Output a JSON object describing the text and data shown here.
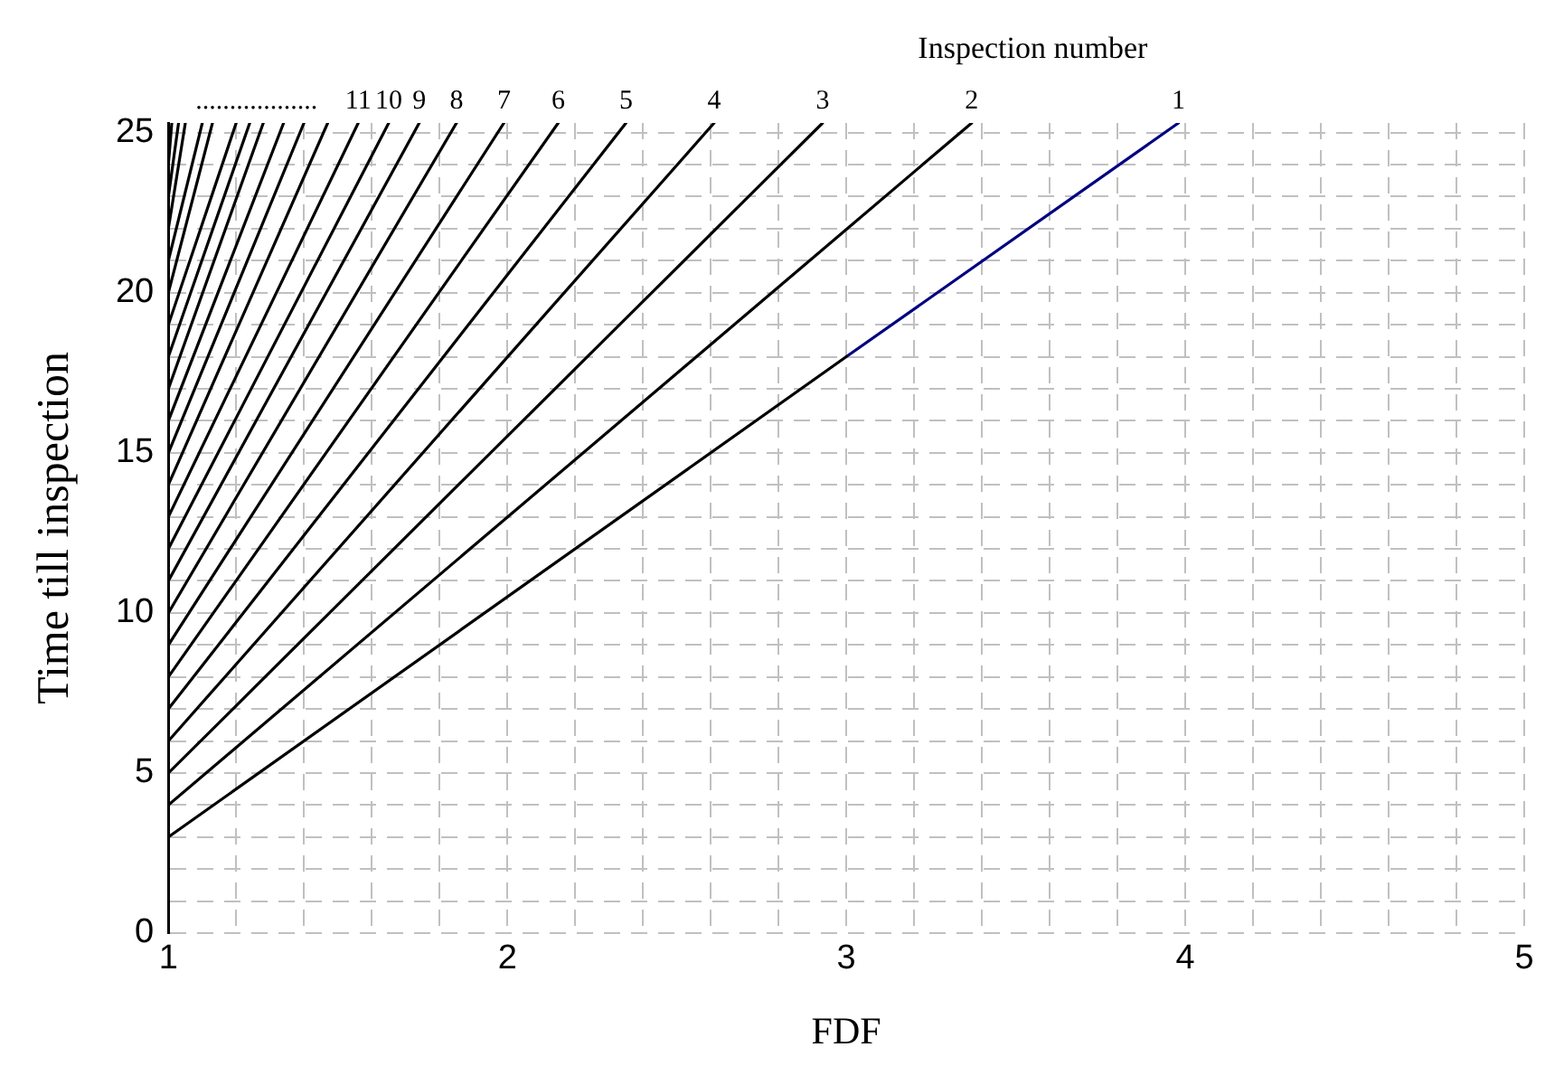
{
  "chart_data": {
    "type": "line",
    "xlabel": "FDF",
    "ylabel": "Time till inspection",
    "xlim": [
      1,
      5
    ],
    "ylim": [
      0,
      25.3
    ],
    "xticks": [
      1,
      {
        "value": 1.2,
        "label": null
      },
      {
        "value": 1.4,
        "label": null
      },
      {
        "value": 1.6,
        "label": null
      },
      {
        "value": 1.8,
        "label": null
      },
      2,
      {
        "value": 2.2,
        "label": null
      },
      {
        "value": 2.4,
        "label": null
      },
      {
        "value": 2.6,
        "label": null
      },
      {
        "value": 2.8,
        "label": null
      },
      3,
      {
        "value": 3.2,
        "label": null
      },
      {
        "value": 3.4,
        "label": null
      },
      {
        "value": 3.6,
        "label": null
      },
      {
        "value": 3.8,
        "label": null
      },
      4,
      {
        "value": 4.2,
        "label": null
      },
      {
        "value": 4.4,
        "label": null
      },
      {
        "value": 4.6,
        "label": null
      },
      {
        "value": 4.8,
        "label": null
      },
      5
    ],
    "yticks": [
      0,
      {
        "value": 1,
        "label": null
      },
      {
        "value": 2,
        "label": null
      },
      {
        "value": 3,
        "label": null
      },
      {
        "value": 4,
        "label": null
      },
      5,
      {
        "value": 6,
        "label": null
      },
      {
        "value": 7,
        "label": null
      },
      {
        "value": 8,
        "label": null
      },
      {
        "value": 9,
        "label": null
      },
      10,
      {
        "value": 11,
        "label": null
      },
      {
        "value": 12,
        "label": null
      },
      {
        "value": 13,
        "label": null
      },
      {
        "value": 14,
        "label": null
      },
      15,
      {
        "value": 16,
        "label": null
      },
      {
        "value": 17,
        "label": null
      },
      {
        "value": 18,
        "label": null
      },
      {
        "value": 19,
        "label": null
      },
      20,
      {
        "value": 21,
        "label": null
      },
      {
        "value": 22,
        "label": null
      },
      {
        "value": 23,
        "label": null
      },
      {
        "value": 24,
        "label": null
      },
      25
    ],
    "grid": true,
    "legend": false,
    "marker": "none",
    "line_style": "solid",
    "series": [
      {
        "color": "#000000",
        "x": [
          1,
          3
        ],
        "values": [
          3,
          18
        ]
      },
      {
        "color": "#000080",
        "x": [
          3,
          3.98
        ],
        "values": [
          18,
          25.3
        ]
      },
      {
        "color": "#000000",
        "x": [
          1,
          3.37
        ],
        "values": [
          4,
          25.3
        ]
      },
      {
        "color": "#000000",
        "x": [
          1,
          2.93
        ],
        "values": [
          5,
          25.3
        ]
      },
      {
        "color": "#000000",
        "x": [
          1,
          2.61
        ],
        "values": [
          6,
          25.3
        ]
      },
      {
        "color": "#000000",
        "x": [
          1,
          2.35
        ],
        "values": [
          7,
          25.3
        ]
      },
      {
        "color": "#000000",
        "x": [
          1,
          2.15
        ],
        "values": [
          8,
          25.3
        ]
      },
      {
        "color": "#000000",
        "x": [
          1,
          1.99
        ],
        "values": [
          9,
          25.3
        ]
      },
      {
        "color": "#000000",
        "x": [
          1,
          1.85
        ],
        "values": [
          10,
          25.3
        ]
      },
      {
        "color": "#000000",
        "x": [
          1,
          1.74
        ],
        "values": [
          11,
          25.3
        ]
      },
      {
        "color": "#000000",
        "x": [
          1,
          1.65
        ],
        "values": [
          12,
          25.3
        ]
      },
      {
        "color": "#000000",
        "x": [
          1,
          1.56
        ],
        "values": [
          13,
          25.3
        ]
      },
      {
        "color": "#000000",
        "x": [
          1,
          1.47
        ],
        "values": [
          14,
          25.3
        ]
      },
      {
        "color": "#000000",
        "x": [
          1,
          1.4
        ],
        "values": [
          15,
          25.3
        ]
      },
      {
        "color": "#000000",
        "x": [
          1,
          1.34
        ],
        "values": [
          16,
          25.3
        ]
      },
      {
        "color": "#000000",
        "x": [
          1,
          1.28
        ],
        "values": [
          17,
          25.3
        ]
      },
      {
        "color": "#000000",
        "x": [
          1,
          1.24
        ],
        "values": [
          18,
          25.3
        ]
      },
      {
        "color": "#000000",
        "x": [
          1,
          1.2
        ],
        "values": [
          19,
          25.3
        ]
      },
      {
        "color": "#000000",
        "x": [
          1,
          1.13
        ],
        "values": [
          20,
          25.3
        ]
      },
      {
        "color": "#000000",
        "x": [
          1,
          1.1
        ],
        "values": [
          21,
          25.3
        ]
      },
      {
        "color": "#000000",
        "x": [
          1,
          1.05
        ],
        "values": [
          22,
          25.3
        ]
      },
      {
        "color": "#000000",
        "x": [
          1,
          1.03
        ],
        "values": [
          23,
          25.3
        ]
      },
      {
        "color": "#000000",
        "x": [
          1,
          1.01
        ],
        "values": [
          24,
          25.3
        ]
      }
    ],
    "annotations": [
      "Inspection number",
      {
        "text": "1",
        "x": 3.98,
        "y": 25.3
      },
      {
        "text": "2",
        "x": 3.37,
        "y": 25.3
      },
      {
        "text": "3",
        "x": 2.93,
        "y": 25.3
      },
      {
        "text": "4",
        "x": 2.61,
        "y": 25.3
      },
      {
        "text": "5",
        "x": 2.35,
        "y": 25.3
      },
      {
        "text": "6",
        "x": 2.15,
        "y": 25.3
      },
      {
        "text": "7",
        "x": 1.99,
        "y": 25.3
      },
      {
        "text": "8",
        "x": 1.85,
        "y": 25.3
      },
      {
        "text": "9",
        "x": 1.74,
        "y": 25.3
      },
      {
        "text": "10",
        "x": 1.65,
        "y": 25.3
      },
      {
        "text": "11",
        "x": 1.56,
        "y": 25.3
      },
      {
        "text": "..................",
        "x": 1.26,
        "y": 25.3
      }
    ]
  }
}
